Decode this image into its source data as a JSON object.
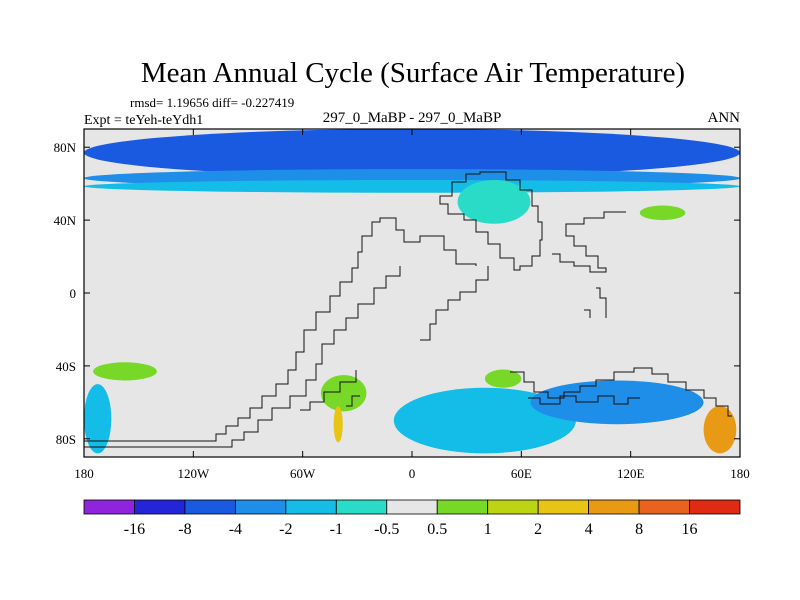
{
  "chart_data": {
    "type": "heatmap",
    "title": "Mean Annual Cycle (Surface Air Temperature)",
    "stats": "rmsd= 1.19656 diff= -0.227419",
    "experiment": "Expt = teYeh-teYdh1",
    "subtitle": "297_0_MaBP - 297_0_MaBP",
    "season": "ANN",
    "xlim": [
      -180,
      180
    ],
    "ylim": [
      -90,
      90
    ],
    "x_ticks": [
      {
        "value": -180,
        "label": "180"
      },
      {
        "value": -120,
        "label": "120W"
      },
      {
        "value": -60,
        "label": "60W"
      },
      {
        "value": 0,
        "label": "0"
      },
      {
        "value": 60,
        "label": "60E"
      },
      {
        "value": 120,
        "label": "120E"
      },
      {
        "value": 180,
        "label": "180"
      }
    ],
    "y_ticks": [
      {
        "value": 80,
        "label": "80N"
      },
      {
        "value": 40,
        "label": "40N"
      },
      {
        "value": 0,
        "label": "0"
      },
      {
        "value": -40,
        "label": "40S"
      },
      {
        "value": -80,
        "label": "80S"
      }
    ],
    "colorbar": {
      "colors": [
        "#8f24dc",
        "#2424d8",
        "#1a5ae0",
        "#1e8ee8",
        "#14bce8",
        "#28dcc8",
        "#e6e6e6",
        "#78d828",
        "#bcd414",
        "#e8c414",
        "#e89a14",
        "#e8641e",
        "#e02a14"
      ],
      "labels": [
        "-16",
        "-8",
        "-4",
        "-2",
        "-1",
        "-0.5",
        "0.5",
        "1",
        "2",
        "4",
        "8",
        "16"
      ]
    },
    "background_value_range": [
      -0.5,
      0.5
    ],
    "anomaly_regions": [
      {
        "name": "north-polar-cold",
        "lon": [
          -180,
          180
        ],
        "lat": [
          64,
          90
        ],
        "bin": 2
      },
      {
        "name": "north-polar-edge",
        "lon": [
          -180,
          180
        ],
        "lat": [
          58,
          68
        ],
        "bin": 3
      },
      {
        "name": "arctic-cool-band",
        "lon": [
          -180,
          180
        ],
        "lat": [
          55,
          62
        ],
        "bin": 4
      },
      {
        "name": "central-asia-cool",
        "lon": [
          25,
          65
        ],
        "lat": [
          38,
          62
        ],
        "bin": 5
      },
      {
        "name": "east-asia-warm",
        "lon": [
          125,
          150
        ],
        "lat": [
          40,
          48
        ],
        "bin": 7
      },
      {
        "name": "south-pacific-warm",
        "lon": [
          -175,
          -140
        ],
        "lat": [
          -48,
          -38
        ],
        "bin": 7
      },
      {
        "name": "southern-ocean-cool-pacific",
        "lon": [
          -180,
          -165
        ],
        "lat": [
          -88,
          -50
        ],
        "bin": 4
      },
      {
        "name": "south-atlantic-warm",
        "lon": [
          -50,
          -25
        ],
        "lat": [
          -65,
          -45
        ],
        "bin": 7
      },
      {
        "name": "south-atlantic-hot",
        "lon": [
          -43,
          -38
        ],
        "lat": [
          -82,
          -62
        ],
        "bin": 9
      },
      {
        "name": "southern-ocean-cool-africa",
        "lon": [
          -10,
          90
        ],
        "lat": [
          -88,
          -52
        ],
        "bin": 4
      },
      {
        "name": "southern-ocean-mid-cool",
        "lon": [
          65,
          160
        ],
        "lat": [
          -72,
          -48
        ],
        "bin": 3
      },
      {
        "name": "australia-south-warm",
        "lon": [
          40,
          60
        ],
        "lat": [
          -52,
          -42
        ],
        "bin": 7
      },
      {
        "name": "ross-sea-hot",
        "lon": [
          160,
          178
        ],
        "lat": [
          -88,
          -62
        ],
        "bin": 10
      }
    ]
  }
}
